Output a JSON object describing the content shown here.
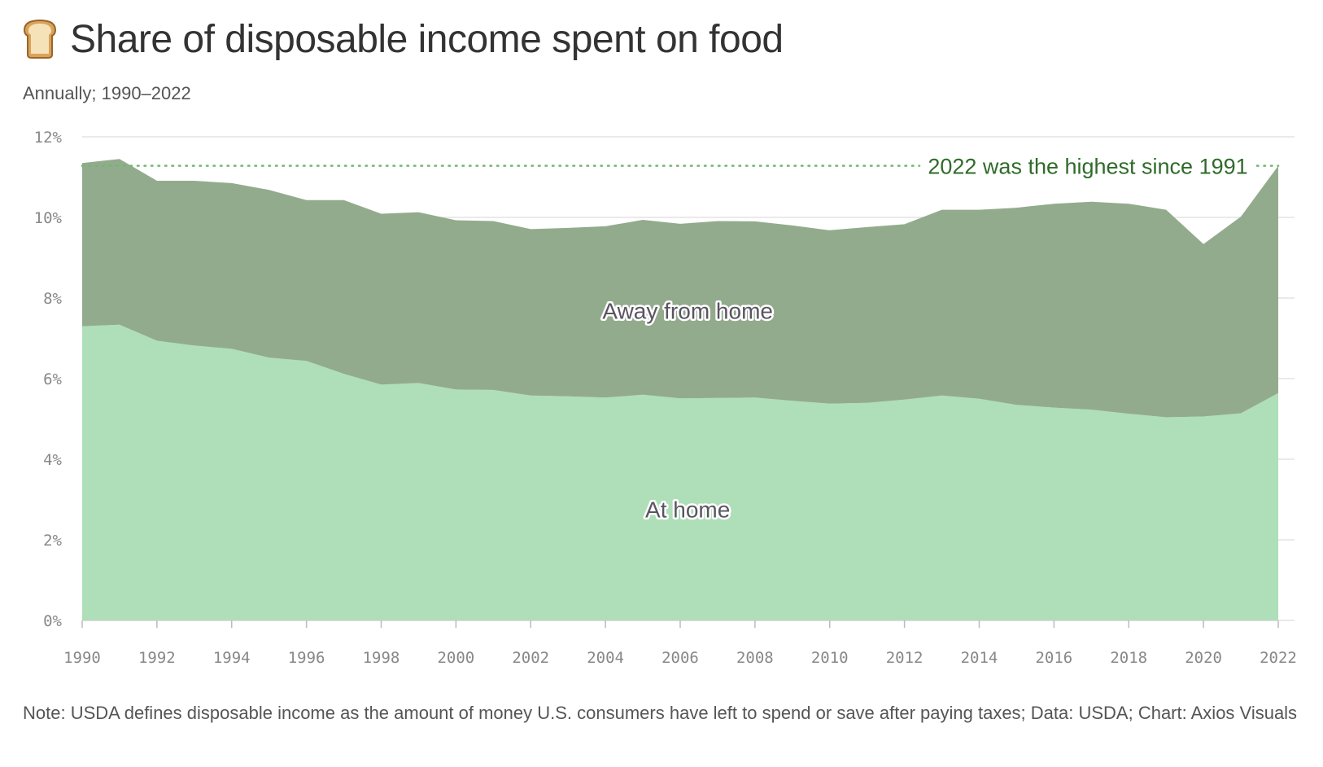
{
  "header": {
    "title": "Share of disposable income spent on food",
    "subtitle": "Annually; 1990–2022",
    "icon": "bread-icon"
  },
  "footer": {
    "note": "Note: USDA defines disposable income as the amount of money U.S. consumers have left to spend or save after paying taxes; Data: USDA; Chart: Axios Visuals"
  },
  "chart_data": {
    "type": "area",
    "stacked": true,
    "x": [
      1990,
      1991,
      1992,
      1993,
      1994,
      1995,
      1996,
      1997,
      1998,
      1999,
      2000,
      2001,
      2002,
      2003,
      2004,
      2005,
      2006,
      2007,
      2008,
      2009,
      2010,
      2011,
      2012,
      2013,
      2014,
      2015,
      2016,
      2017,
      2018,
      2019,
      2020,
      2021,
      2022
    ],
    "series": [
      {
        "name": "At home",
        "color": "#aedfb8",
        "values": [
          7.3,
          7.34,
          6.94,
          6.82,
          6.74,
          6.52,
          6.44,
          6.12,
          5.85,
          5.89,
          5.73,
          5.72,
          5.58,
          5.56,
          5.53,
          5.6,
          5.51,
          5.52,
          5.53,
          5.45,
          5.38,
          5.4,
          5.48,
          5.58,
          5.5,
          5.35,
          5.28,
          5.23,
          5.13,
          5.04,
          5.06,
          5.14,
          5.64
        ]
      },
      {
        "name": "Away from home",
        "color": "#93ab8d",
        "values": [
          4.05,
          4.11,
          3.97,
          4.09,
          4.11,
          4.16,
          3.99,
          4.31,
          4.24,
          4.24,
          4.2,
          4.19,
          4.13,
          4.18,
          4.25,
          4.34,
          4.33,
          4.39,
          4.37,
          4.35,
          4.3,
          4.36,
          4.35,
          4.61,
          4.69,
          4.89,
          5.06,
          5.16,
          5.21,
          5.15,
          4.28,
          4.88,
          5.64
        ]
      }
    ],
    "totals": [
      11.35,
      11.45,
      10.91,
      10.91,
      10.85,
      10.68,
      10.43,
      10.43,
      10.09,
      10.13,
      9.93,
      9.91,
      9.71,
      9.74,
      9.78,
      9.94,
      9.84,
      9.91,
      9.9,
      9.8,
      9.68,
      9.76,
      9.83,
      10.19,
      10.19,
      10.24,
      10.34,
      10.39,
      10.34,
      10.19,
      9.34,
      10.02,
      11.28
    ],
    "xticks": [
      1990,
      1992,
      1994,
      1996,
      1998,
      2000,
      2002,
      2004,
      2006,
      2008,
      2010,
      2012,
      2014,
      2016,
      2018,
      2020,
      2022
    ],
    "yticks": [
      0,
      2,
      4,
      6,
      8,
      10,
      12
    ],
    "ytick_labels": [
      "0%",
      "2%",
      "4%",
      "6%",
      "8%",
      "10%",
      "12%"
    ],
    "xlim": [
      1990,
      2022
    ],
    "ylim": [
      0,
      12
    ],
    "grid": true,
    "reference_line": {
      "value": 11.28,
      "style": "dotted",
      "color": "#6fb872"
    },
    "annotation": "2022 was the highest since 1991",
    "annotation_color": "#2f6b2a",
    "xlabel": "",
    "ylabel": ""
  }
}
